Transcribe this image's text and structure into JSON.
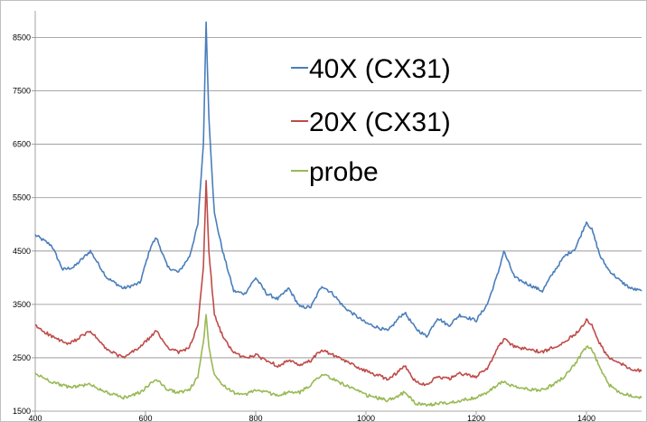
{
  "chart_data": {
    "type": "line",
    "title": "",
    "xlabel": "",
    "ylabel": "",
    "xlim": [
      400,
      1500
    ],
    "ylim": [
      1500,
      9000
    ],
    "x_ticks": [
      400,
      600,
      800,
      1000,
      1200,
      1400
    ],
    "y_ticks": [
      1500,
      2500,
      3500,
      4500,
      5500,
      6500,
      7500,
      8500
    ],
    "grid": "horizontal",
    "legend_position": "top-right-inside",
    "series": [
      {
        "name": "40X (CX31)",
        "color": "#4A7EBB",
        "points": [
          [
            400,
            4800
          ],
          [
            430,
            4600
          ],
          [
            450,
            4150
          ],
          [
            470,
            4200
          ],
          [
            500,
            4500
          ],
          [
            530,
            4000
          ],
          [
            560,
            3800
          ],
          [
            590,
            3900
          ],
          [
            610,
            4600
          ],
          [
            620,
            4750
          ],
          [
            640,
            4200
          ],
          [
            660,
            4100
          ],
          [
            680,
            4400
          ],
          [
            695,
            5000
          ],
          [
            705,
            6500
          ],
          [
            710,
            8800
          ],
          [
            715,
            7000
          ],
          [
            725,
            5200
          ],
          [
            740,
            4500
          ],
          [
            760,
            3750
          ],
          [
            780,
            3700
          ],
          [
            800,
            4000
          ],
          [
            820,
            3700
          ],
          [
            840,
            3600
          ],
          [
            860,
            3800
          ],
          [
            880,
            3450
          ],
          [
            900,
            3450
          ],
          [
            920,
            3850
          ],
          [
            940,
            3700
          ],
          [
            960,
            3450
          ],
          [
            1000,
            3150
          ],
          [
            1040,
            3000
          ],
          [
            1060,
            3250
          ],
          [
            1070,
            3350
          ],
          [
            1090,
            3050
          ],
          [
            1110,
            2900
          ],
          [
            1130,
            3250
          ],
          [
            1150,
            3100
          ],
          [
            1170,
            3300
          ],
          [
            1200,
            3200
          ],
          [
            1220,
            3500
          ],
          [
            1240,
            4100
          ],
          [
            1250,
            4500
          ],
          [
            1270,
            4000
          ],
          [
            1300,
            3850
          ],
          [
            1320,
            3750
          ],
          [
            1340,
            4100
          ],
          [
            1360,
            4400
          ],
          [
            1380,
            4550
          ],
          [
            1400,
            5050
          ],
          [
            1410,
            4900
          ],
          [
            1425,
            4400
          ],
          [
            1440,
            4150
          ],
          [
            1460,
            3950
          ],
          [
            1480,
            3800
          ],
          [
            1500,
            3750
          ]
        ]
      },
      {
        "name": "20X (CX31)",
        "color": "#BE4B48",
        "points": [
          [
            400,
            3100
          ],
          [
            430,
            2900
          ],
          [
            460,
            2750
          ],
          [
            500,
            3000
          ],
          [
            530,
            2650
          ],
          [
            560,
            2500
          ],
          [
            590,
            2700
          ],
          [
            620,
            3000
          ],
          [
            640,
            2700
          ],
          [
            660,
            2600
          ],
          [
            680,
            2700
          ],
          [
            695,
            3100
          ],
          [
            705,
            4200
          ],
          [
            710,
            5800
          ],
          [
            715,
            4500
          ],
          [
            725,
            3300
          ],
          [
            740,
            2900
          ],
          [
            760,
            2600
          ],
          [
            780,
            2500
          ],
          [
            800,
            2550
          ],
          [
            820,
            2450
          ],
          [
            840,
            2350
          ],
          [
            860,
            2450
          ],
          [
            880,
            2350
          ],
          [
            900,
            2450
          ],
          [
            920,
            2650
          ],
          [
            940,
            2550
          ],
          [
            960,
            2450
          ],
          [
            1000,
            2250
          ],
          [
            1040,
            2100
          ],
          [
            1060,
            2250
          ],
          [
            1070,
            2350
          ],
          [
            1090,
            2050
          ],
          [
            1110,
            2000
          ],
          [
            1130,
            2150
          ],
          [
            1150,
            2100
          ],
          [
            1170,
            2200
          ],
          [
            1200,
            2150
          ],
          [
            1220,
            2300
          ],
          [
            1240,
            2700
          ],
          [
            1250,
            2850
          ],
          [
            1270,
            2700
          ],
          [
            1300,
            2650
          ],
          [
            1320,
            2600
          ],
          [
            1340,
            2700
          ],
          [
            1360,
            2800
          ],
          [
            1380,
            2950
          ],
          [
            1400,
            3200
          ],
          [
            1410,
            3100
          ],
          [
            1425,
            2750
          ],
          [
            1440,
            2500
          ],
          [
            1460,
            2400
          ],
          [
            1480,
            2300
          ],
          [
            1500,
            2250
          ]
        ]
      },
      {
        "name": "probe",
        "color": "#98B954",
        "points": [
          [
            400,
            2200
          ],
          [
            430,
            2050
          ],
          [
            460,
            1950
          ],
          [
            500,
            2000
          ],
          [
            530,
            1850
          ],
          [
            560,
            1750
          ],
          [
            590,
            1850
          ],
          [
            620,
            2100
          ],
          [
            640,
            1900
          ],
          [
            660,
            1850
          ],
          [
            680,
            1900
          ],
          [
            695,
            2150
          ],
          [
            705,
            2800
          ],
          [
            710,
            3300
          ],
          [
            715,
            2700
          ],
          [
            725,
            2200
          ],
          [
            740,
            2000
          ],
          [
            760,
            1850
          ],
          [
            780,
            1800
          ],
          [
            800,
            1900
          ],
          [
            820,
            1850
          ],
          [
            840,
            1800
          ],
          [
            860,
            1850
          ],
          [
            880,
            1850
          ],
          [
            900,
            2000
          ],
          [
            920,
            2200
          ],
          [
            940,
            2100
          ],
          [
            960,
            2000
          ],
          [
            1000,
            1800
          ],
          [
            1040,
            1700
          ],
          [
            1060,
            1800
          ],
          [
            1070,
            1850
          ],
          [
            1090,
            1650
          ],
          [
            1110,
            1600
          ],
          [
            1130,
            1650
          ],
          [
            1150,
            1650
          ],
          [
            1170,
            1700
          ],
          [
            1200,
            1750
          ],
          [
            1220,
            1850
          ],
          [
            1240,
            2000
          ],
          [
            1250,
            2050
          ],
          [
            1270,
            1950
          ],
          [
            1300,
            1900
          ],
          [
            1320,
            1900
          ],
          [
            1340,
            2000
          ],
          [
            1360,
            2150
          ],
          [
            1380,
            2400
          ],
          [
            1400,
            2700
          ],
          [
            1410,
            2650
          ],
          [
            1425,
            2300
          ],
          [
            1440,
            2000
          ],
          [
            1460,
            1850
          ],
          [
            1480,
            1800
          ],
          [
            1500,
            1750
          ]
        ]
      }
    ]
  },
  "legend": {
    "items": [
      "40X (CX31)",
      "20X (CX31)",
      "probe"
    ]
  }
}
